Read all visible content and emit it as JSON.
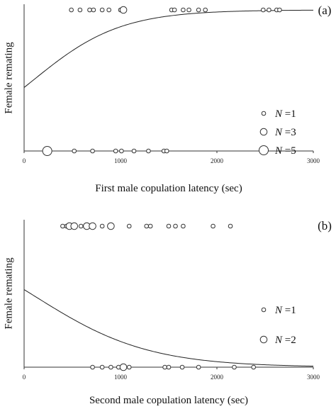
{
  "chart_data": [
    {
      "type": "scatter",
      "panel_label": "(a)",
      "xlabel": "First male copulation latency (sec)",
      "ylabel": "Female remating",
      "xlim": [
        0,
        3000
      ],
      "ylim": [
        0,
        1
      ],
      "x_ticks": [
        "0",
        "1000",
        "2000",
        "3000"
      ],
      "legend": {
        "placement": "right",
        "entries": [
          {
            "label": "N =1",
            "n": 1
          },
          {
            "label": "N =3",
            "n": 3
          },
          {
            "label": "N =5",
            "n": 5
          }
        ]
      },
      "curve": {
        "type": "logistic",
        "y0": 0.45,
        "rate": 0.0022
      },
      "points": [
        {
          "x": 490,
          "y": 1,
          "n": 1
        },
        {
          "x": 580,
          "y": 1,
          "n": 1
        },
        {
          "x": 680,
          "y": 1,
          "n": 1
        },
        {
          "x": 720,
          "y": 1,
          "n": 1
        },
        {
          "x": 810,
          "y": 1,
          "n": 1
        },
        {
          "x": 880,
          "y": 1,
          "n": 1
        },
        {
          "x": 1000,
          "y": 1,
          "n": 1
        },
        {
          "x": 1030,
          "y": 1,
          "n": 3
        },
        {
          "x": 1530,
          "y": 1,
          "n": 1
        },
        {
          "x": 1560,
          "y": 1,
          "n": 1
        },
        {
          "x": 1650,
          "y": 1,
          "n": 1
        },
        {
          "x": 1710,
          "y": 1,
          "n": 1
        },
        {
          "x": 1810,
          "y": 1,
          "n": 1
        },
        {
          "x": 1880,
          "y": 1,
          "n": 1
        },
        {
          "x": 2480,
          "y": 1,
          "n": 1
        },
        {
          "x": 2540,
          "y": 1,
          "n": 1
        },
        {
          "x": 2620,
          "y": 1,
          "n": 1
        },
        {
          "x": 2650,
          "y": 1,
          "n": 1
        },
        {
          "x": 240,
          "y": 0,
          "n": 5
        },
        {
          "x": 520,
          "y": 0,
          "n": 1
        },
        {
          "x": 710,
          "y": 0,
          "n": 1
        },
        {
          "x": 950,
          "y": 0,
          "n": 1
        },
        {
          "x": 1010,
          "y": 0,
          "n": 1
        },
        {
          "x": 1140,
          "y": 0,
          "n": 1
        },
        {
          "x": 1290,
          "y": 0,
          "n": 1
        },
        {
          "x": 1450,
          "y": 0,
          "n": 1
        },
        {
          "x": 1480,
          "y": 0,
          "n": 1
        }
      ]
    },
    {
      "type": "scatter",
      "panel_label": "(b)",
      "xlabel": "Second male copulation latency (sec)",
      "ylabel": "Female remating",
      "xlim": [
        0,
        3000
      ],
      "ylim": [
        0,
        1
      ],
      "x_ticks": [
        "0",
        "1000",
        "2000",
        "3000"
      ],
      "legend": {
        "placement": "right",
        "entries": [
          {
            "label": "N =1",
            "n": 1
          },
          {
            "label": "N =2",
            "n": 2
          }
        ]
      },
      "curve": {
        "type": "logistic",
        "y0": 0.55,
        "rate": -0.0017
      },
      "points": [
        {
          "x": 400,
          "y": 1,
          "n": 1
        },
        {
          "x": 440,
          "y": 1,
          "n": 1
        },
        {
          "x": 470,
          "y": 1,
          "n": 2
        },
        {
          "x": 520,
          "y": 1,
          "n": 2
        },
        {
          "x": 590,
          "y": 1,
          "n": 1
        },
        {
          "x": 650,
          "y": 1,
          "n": 2
        },
        {
          "x": 710,
          "y": 1,
          "n": 2
        },
        {
          "x": 810,
          "y": 1,
          "n": 1
        },
        {
          "x": 900,
          "y": 1,
          "n": 2
        },
        {
          "x": 1090,
          "y": 1,
          "n": 1
        },
        {
          "x": 1270,
          "y": 1,
          "n": 1
        },
        {
          "x": 1310,
          "y": 1,
          "n": 1
        },
        {
          "x": 1500,
          "y": 1,
          "n": 1
        },
        {
          "x": 1570,
          "y": 1,
          "n": 1
        },
        {
          "x": 1650,
          "y": 1,
          "n": 1
        },
        {
          "x": 1960,
          "y": 1,
          "n": 1
        },
        {
          "x": 2140,
          "y": 1,
          "n": 1
        },
        {
          "x": 710,
          "y": 0,
          "n": 1
        },
        {
          "x": 810,
          "y": 0,
          "n": 1
        },
        {
          "x": 900,
          "y": 0,
          "n": 1
        },
        {
          "x": 980,
          "y": 0,
          "n": 1
        },
        {
          "x": 1030,
          "y": 0,
          "n": 2
        },
        {
          "x": 1090,
          "y": 0,
          "n": 1
        },
        {
          "x": 1460,
          "y": 0,
          "n": 1
        },
        {
          "x": 1500,
          "y": 0,
          "n": 1
        },
        {
          "x": 1640,
          "y": 0,
          "n": 1
        },
        {
          "x": 1810,
          "y": 0,
          "n": 1
        },
        {
          "x": 2180,
          "y": 0,
          "n": 1
        },
        {
          "x": 2380,
          "y": 0,
          "n": 1
        }
      ]
    }
  ]
}
